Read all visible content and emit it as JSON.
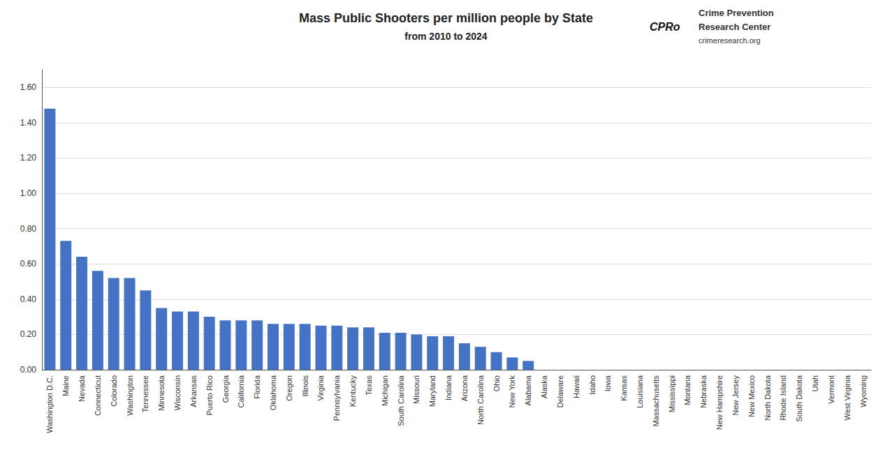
{
  "chart_data": {
    "type": "bar",
    "title": "Mass Public Shooters per million people by State",
    "subtitle": "from 2010 to 2024",
    "categories": [
      "Washington D.C.",
      "Maine",
      "Nevada",
      "Connecticut",
      "Colorado",
      "Washington",
      "Tennessee",
      "Minnesota",
      "Wisconsin",
      "Arkansas",
      "Puerto Rico",
      "Georgia",
      "California",
      "Florida",
      "Oklahoma",
      "Oregon",
      "Illinois",
      "Virginia",
      "Pennsylvania",
      "Kentucky",
      "Texas",
      "Michigan",
      "South Carolina",
      "Missouri",
      "Maryland",
      "Indiana",
      "Arizona",
      "North Carolina",
      "Ohio",
      "New York",
      "Alabama",
      "Alaska",
      "Delaware",
      "Hawaii",
      "Idaho",
      "Iowa",
      "Kansas",
      "Louisiana",
      "Massachusetts",
      "Mississippi",
      "Montana",
      "Nebraska",
      "New Hampshire",
      "New Jersey",
      "New Mexico",
      "North Dakota",
      "Rhode Island",
      "South Dakota",
      "Utah",
      "Vermont",
      "West Virginia",
      "Wyoming"
    ],
    "values": [
      1.48,
      0.73,
      0.64,
      0.56,
      0.52,
      0.52,
      0.45,
      0.35,
      0.33,
      0.33,
      0.3,
      0.28,
      0.28,
      0.28,
      0.26,
      0.26,
      0.26,
      0.25,
      0.25,
      0.24,
      0.24,
      0.21,
      0.21,
      0.2,
      0.19,
      0.19,
      0.15,
      0.13,
      0.1,
      0.07,
      0.05,
      0.0,
      0.0,
      0.0,
      0.0,
      0.0,
      0.0,
      0.0,
      0.0,
      0.0,
      0.0,
      0.0,
      0.0,
      0.0,
      0.0,
      0.0,
      0.0,
      0.0,
      0.0,
      0.0,
      0.0,
      0.0
    ],
    "color": "#4472C4",
    "ylim": [
      0,
      1.7
    ],
    "yticks": [
      {
        "value": 0,
        "label": "0.00"
      },
      {
        "value": 0.2,
        "label": "0.20"
      },
      {
        "value": 0.4,
        "label": "0.40"
      },
      {
        "value": 0.6,
        "label": "0.60"
      },
      {
        "value": 0.8,
        "label": "0.80"
      },
      {
        "value": 1.0,
        "label": "1.00"
      },
      {
        "value": 1.2,
        "label": "1.20"
      },
      {
        "value": 1.4,
        "label": "1.40"
      },
      {
        "value": 1.6,
        "label": "1.60"
      }
    ],
    "grid": true,
    "annotations": [
      "CPRo",
      "Crime Prevention",
      "Research Center",
      "crimeresearch.org"
    ]
  }
}
